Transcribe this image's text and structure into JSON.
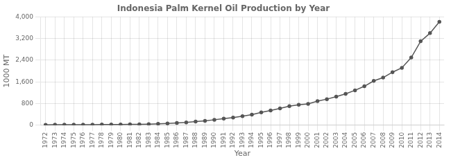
{
  "chart_data": {
    "type": "line",
    "title": "Indonesia Palm Kernel Oil Production by Year",
    "xlabel": "Year",
    "ylabel": "1000 MT",
    "x": [
      1972,
      1973,
      1974,
      1975,
      1976,
      1977,
      1978,
      1979,
      1980,
      1981,
      1982,
      1983,
      1984,
      1985,
      1986,
      1987,
      1988,
      1989,
      1990,
      1991,
      1992,
      1993,
      1994,
      1995,
      1996,
      1997,
      1998,
      1999,
      2000,
      2001,
      2002,
      2003,
      2004,
      2005,
      2006,
      2007,
      2008,
      2009,
      2010,
      2011,
      2012,
      2013,
      2014
    ],
    "values": [
      18,
      20,
      22,
      22,
      24,
      26,
      28,
      28,
      30,
      33,
      38,
      45,
      58,
      68,
      85,
      105,
      135,
      165,
      205,
      245,
      285,
      335,
      395,
      475,
      545,
      625,
      705,
      755,
      790,
      890,
      965,
      1060,
      1160,
      1290,
      1440,
      1640,
      1760,
      1960,
      2120,
      2500,
      3100,
      3400,
      3820
    ],
    "color": "#555555",
    "marker": "circle",
    "grid": true,
    "xlim": [
      1971.5,
      2014.5
    ],
    "xticks": [
      1972,
      1973,
      1974,
      1975,
      1976,
      1977,
      1978,
      1979,
      1980,
      1981,
      1982,
      1983,
      1984,
      1985,
      1986,
      1987,
      1988,
      1989,
      1990,
      1991,
      1992,
      1993,
      1994,
      1995,
      1996,
      1997,
      1998,
      1999,
      2000,
      2001,
      2002,
      2003,
      2004,
      2005,
      2006,
      2007,
      2008,
      2009,
      2010,
      2011,
      2012,
      2013,
      2014
    ],
    "ylim": [
      0,
      4000
    ],
    "yticks": [
      0,
      800,
      {
        "value": 1600,
        "label": "1,600"
      },
      {
        "value": 2400,
        "label": "2,400"
      },
      {
        "value": 3200,
        "label": "3,200"
      },
      {
        "value": 4000,
        "label": "4,000"
      }
    ]
  }
}
